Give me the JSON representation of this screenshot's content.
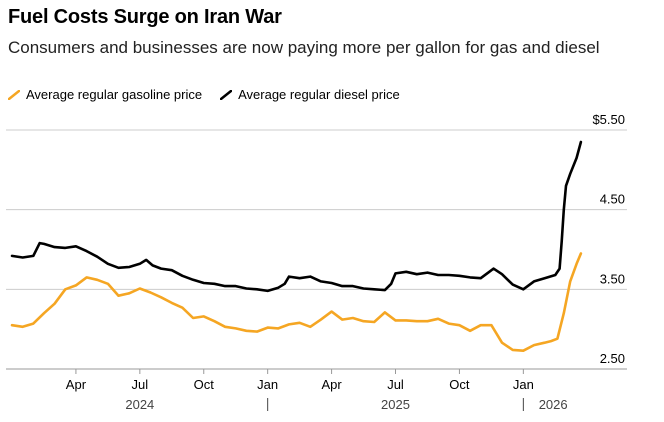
{
  "title": "Fuel Costs Surge on Iran War",
  "subtitle": "Consumers and businesses are now paying more per gallon for gas and diesel",
  "legend": {
    "gasoline": "Average regular gasoline price",
    "diesel": "Average regular diesel price"
  },
  "colors": {
    "gasoline": "#F5A623",
    "diesel": "#000000",
    "grid": "#CCCCCC",
    "axis": "#999999"
  },
  "chart_data": {
    "type": "line",
    "title": "Fuel Costs Surge on Iran War",
    "xlabel": "",
    "ylabel": "",
    "ylim": [
      2.5,
      5.5
    ],
    "yticks": [
      {
        "value": 5.5,
        "label": "$5.50"
      },
      {
        "value": 4.5,
        "label": "4.50"
      },
      {
        "value": 3.5,
        "label": "3.50"
      },
      {
        "value": 2.5,
        "label": "2.50"
      }
    ],
    "xlim": [
      0,
      26.8
    ],
    "month_ticks": [
      {
        "x": 3,
        "label": "Apr"
      },
      {
        "x": 6,
        "label": "Jul"
      },
      {
        "x": 9,
        "label": "Oct"
      },
      {
        "x": 12,
        "label": "Jan"
      },
      {
        "x": 15,
        "label": "Apr"
      },
      {
        "x": 18,
        "label": "Jul"
      },
      {
        "x": 21,
        "label": "Oct"
      },
      {
        "x": 24,
        "label": "Jan"
      }
    ],
    "year_labels": [
      {
        "x": 6,
        "label": "2024"
      },
      {
        "x": 18,
        "label": "2025"
      },
      {
        "x": 25.4,
        "label": "2026"
      }
    ],
    "year_separators": [
      12,
      24
    ],
    "series": [
      {
        "name": "Average regular gasoline price",
        "key": "gasoline",
        "x": [
          0,
          0.5,
          1.0,
          1.5,
          2.0,
          2.5,
          3.0,
          3.5,
          4.0,
          4.5,
          5.0,
          5.5,
          6.0,
          6.5,
          7.0,
          7.5,
          8.0,
          8.5,
          9.0,
          9.5,
          10.0,
          10.5,
          11.0,
          11.5,
          12.0,
          12.5,
          13.0,
          13.5,
          14.0,
          14.5,
          15.0,
          15.5,
          16.0,
          16.5,
          17.0,
          17.5,
          18.0,
          18.5,
          19.0,
          19.5,
          20.0,
          20.5,
          21.0,
          21.5,
          22.0,
          22.5,
          23.0,
          23.5,
          24.0,
          24.5,
          25.0,
          25.3,
          25.6,
          25.9,
          26.2,
          26.5,
          26.7
        ],
        "values": [
          3.05,
          3.03,
          3.07,
          3.2,
          3.32,
          3.5,
          3.55,
          3.65,
          3.62,
          3.57,
          3.42,
          3.45,
          3.51,
          3.46,
          3.4,
          3.33,
          3.27,
          3.14,
          3.16,
          3.1,
          3.03,
          3.01,
          2.98,
          2.97,
          3.02,
          3.01,
          3.06,
          3.08,
          3.03,
          3.12,
          3.22,
          3.12,
          3.14,
          3.1,
          3.09,
          3.21,
          3.11,
          3.11,
          3.1,
          3.1,
          3.13,
          3.07,
          3.05,
          2.98,
          3.05,
          3.05,
          2.83,
          2.74,
          2.73,
          2.8,
          2.83,
          2.85,
          2.88,
          3.2,
          3.6,
          3.82,
          3.95
        ]
      },
      {
        "name": "Average regular diesel price",
        "key": "diesel",
        "x": [
          0,
          0.5,
          1.0,
          1.3,
          1.5,
          2.0,
          2.5,
          3.0,
          3.5,
          4.0,
          4.5,
          5.0,
          5.5,
          6.0,
          6.3,
          6.6,
          7.0,
          7.5,
          8.0,
          8.5,
          9.0,
          9.5,
          10.0,
          10.5,
          11.0,
          11.5,
          12.0,
          12.5,
          12.8,
          13.0,
          13.5,
          14.0,
          14.5,
          15.0,
          15.5,
          16.0,
          16.5,
          17.0,
          17.5,
          17.8,
          18.0,
          18.5,
          19.0,
          19.5,
          20.0,
          20.5,
          21.0,
          21.5,
          22.0,
          22.4,
          22.6,
          23.0,
          23.5,
          24.0,
          24.5,
          25.0,
          25.5,
          25.7,
          25.8,
          25.9,
          26.0,
          26.2,
          26.5,
          26.7
        ],
        "values": [
          3.92,
          3.9,
          3.92,
          4.08,
          4.07,
          4.03,
          4.02,
          4.04,
          3.98,
          3.91,
          3.82,
          3.77,
          3.78,
          3.82,
          3.87,
          3.8,
          3.76,
          3.74,
          3.67,
          3.62,
          3.58,
          3.57,
          3.54,
          3.54,
          3.51,
          3.5,
          3.48,
          3.52,
          3.57,
          3.66,
          3.64,
          3.66,
          3.6,
          3.58,
          3.54,
          3.54,
          3.51,
          3.5,
          3.49,
          3.57,
          3.7,
          3.72,
          3.69,
          3.71,
          3.68,
          3.68,
          3.67,
          3.65,
          3.64,
          3.72,
          3.76,
          3.69,
          3.56,
          3.5,
          3.6,
          3.64,
          3.68,
          3.76,
          4.1,
          4.5,
          4.8,
          4.95,
          5.15,
          5.35
        ]
      }
    ]
  }
}
